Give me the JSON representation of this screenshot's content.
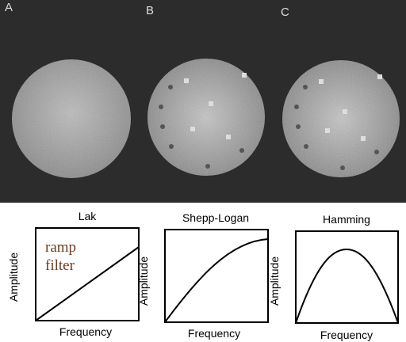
{
  "panels": [
    {
      "label": "A"
    },
    {
      "label": "B"
    },
    {
      "label": "C"
    }
  ],
  "plots": [
    {
      "title": "Lak",
      "x_label": "Frequency",
      "y_label": "Amplitude",
      "annotation": [
        "ramp",
        "filter"
      ]
    },
    {
      "title": "Shepp-Logan",
      "x_label": "Frequency",
      "y_label": "Amplitude"
    },
    {
      "title": "Hamming",
      "x_label": "Frequency",
      "y_label": "Amplitude"
    }
  ]
}
